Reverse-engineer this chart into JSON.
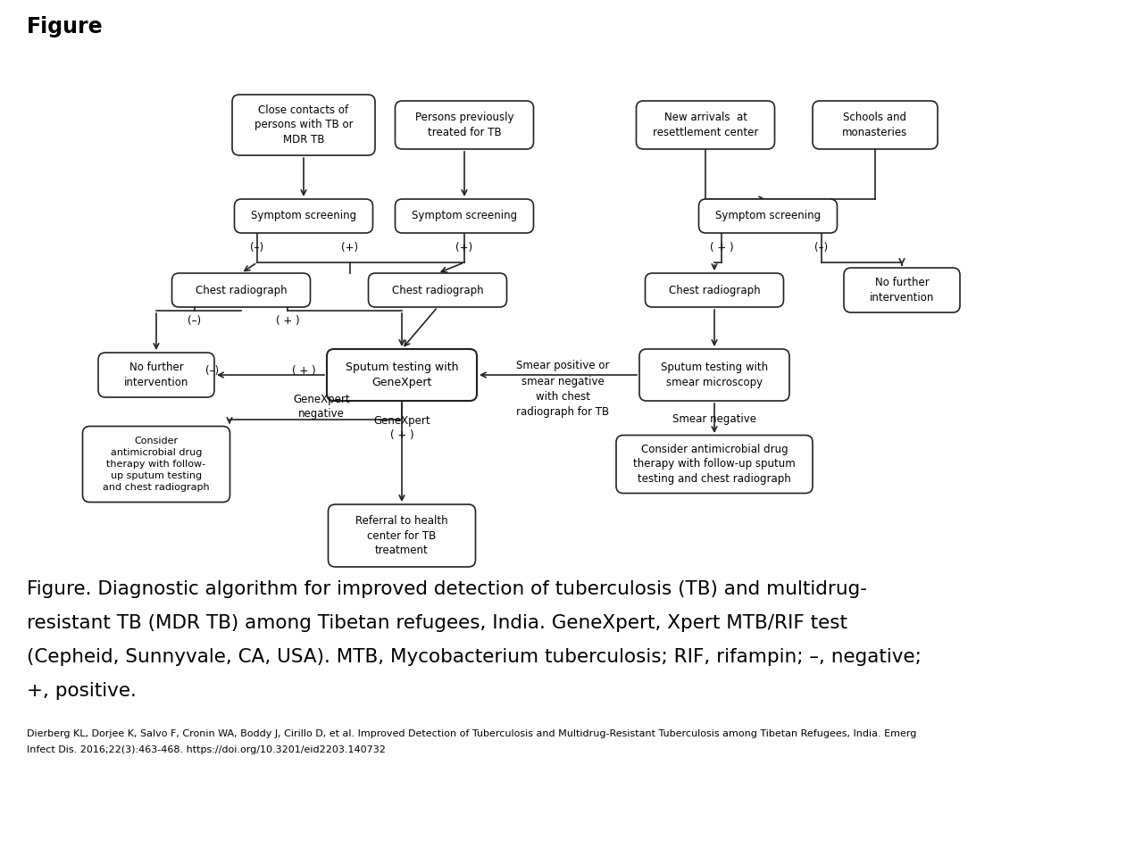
{
  "title": "Figure",
  "caption_lines": [
    "Figure. Diagnostic algorithm for improved detection of tuberculosis (TB) and multidrug-",
    "resistant TB (MDR TB) among Tibetan refugees, India. GeneXpert, Xpert MTB/RIF test",
    "(Cepheid, Sunnyvale, CA, USA). MTB, Mycobacterium tuberculosis; RIF, rifampin; –, negative;",
    "+, positive."
  ],
  "reference": "Dierberg KL, Dorjee K, Salvo F, Cronin WA, Boddy J, Cirillo D, et al. Improved Detection of Tuberculosis and Multidrug-Resistant Tuberculosis among Tibetan Refugees, India. Emerg Infect Dis. 2016;22(3):463-468. https://doi.org/10.3201/eid2203.140732",
  "background_color": "#ffffff",
  "box_edge_color": "#222222",
  "box_fill_color": "#ffffff",
  "arrow_color": "#222222",
  "text_color": "#000000"
}
